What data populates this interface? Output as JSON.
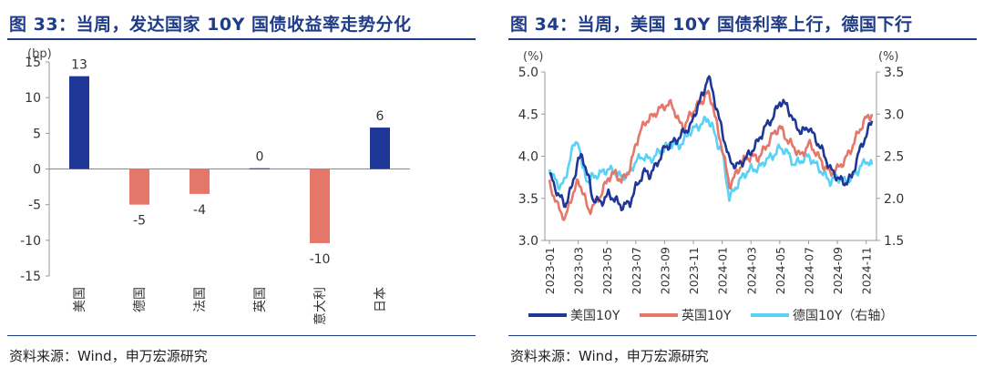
{
  "left": {
    "title": "图 33：当周，发达国家 10Y 国债收益率走势分化",
    "source": "资料来源：Wind，申万宏源研究"
  },
  "right": {
    "title": "图 34：当周，美国 10Y 国债利率上行，德国下行",
    "source": "资料来源：Wind，申万宏源研究"
  },
  "chart_data": [
    {
      "type": "bar",
      "title": "当周，发达国家 10Y 国债收益率走势分化",
      "ylabel": "(bp)",
      "ylim": [
        -15,
        15
      ],
      "yticks": [
        15,
        10,
        5,
        0,
        -5,
        -10,
        -15
      ],
      "categories": [
        "美国",
        "德国",
        "法国",
        "英国",
        "意大利",
        "日本"
      ],
      "values": [
        13,
        -5,
        -3.5,
        0.1,
        -10.4,
        5.8
      ],
      "labels": [
        "13",
        "-5",
        "-4",
        "0",
        "-10",
        "6"
      ],
      "colors": {
        "positive": "#1F3796",
        "negative": "#E5776A"
      }
    },
    {
      "type": "line",
      "title": "当周，美国 10Y 国债利率上行，德国下行",
      "y_left": {
        "label": "(%)",
        "lim": [
          3.0,
          5.0
        ],
        "ticks": [
          "5.0",
          "4.5",
          "4.0",
          "3.5",
          "3.0"
        ]
      },
      "y_right": {
        "label": "(%)",
        "lim": [
          1.5,
          3.5
        ],
        "ticks": [
          "3.5",
          "3.0",
          "2.5",
          "2.0",
          "1.5"
        ]
      },
      "x_ticks": [
        "2023-01",
        "2023-03",
        "2023-05",
        "2023-07",
        "2023-09",
        "2023-11",
        "2024-01",
        "2024-03",
        "2024-05",
        "2024-07",
        "2024-09",
        "2024-11"
      ],
      "series": [
        {
          "name": "美国10Y",
          "axis": "left",
          "color": "#1F3796",
          "x": [
            0,
            0.6,
            1.1,
            1.5,
            2.0,
            2.3,
            2.7,
            3.0,
            3.6,
            4.1,
            4.6,
            5.0,
            5.6,
            6.0,
            6.6,
            7.0,
            7.6,
            8.0,
            8.5,
            9.0,
            9.4,
            9.8,
            10.3,
            10.7,
            11.0,
            11.3,
            11.7,
            12.0,
            12.5,
            13.0,
            13.5,
            14.0,
            14.5,
            15.0,
            15.5,
            16.0,
            16.5,
            17.0,
            17.5,
            18.0,
            18.5,
            19.0,
            19.5,
            20.0,
            20.5,
            21.0,
            21.5,
            22.0,
            22.4
          ],
          "values": [
            3.79,
            3.55,
            3.42,
            3.6,
            3.95,
            4.0,
            3.75,
            3.5,
            3.45,
            3.55,
            3.48,
            3.4,
            3.45,
            3.63,
            3.82,
            3.78,
            3.95,
            4.1,
            4.15,
            4.22,
            4.3,
            4.35,
            4.6,
            4.75,
            4.95,
            4.8,
            4.5,
            4.3,
            3.95,
            3.88,
            3.95,
            4.05,
            4.18,
            4.35,
            4.45,
            4.65,
            4.6,
            4.4,
            4.28,
            4.35,
            4.2,
            4.05,
            3.85,
            3.75,
            3.68,
            3.75,
            4.05,
            4.25,
            4.42
          ]
        },
        {
          "name": "英国10Y",
          "axis": "left",
          "color": "#E5776A",
          "x": [
            0,
            0.6,
            1.1,
            1.5,
            2.0,
            2.3,
            2.7,
            3.0,
            3.6,
            4.1,
            4.6,
            5.0,
            5.6,
            6.0,
            6.6,
            7.0,
            7.6,
            8.0,
            8.5,
            9.0,
            9.4,
            9.8,
            10.3,
            10.7,
            11.0,
            11.3,
            11.7,
            12.0,
            12.5,
            13.0,
            13.5,
            14.0,
            14.5,
            15.0,
            15.5,
            16.0,
            16.5,
            17.0,
            17.5,
            18.0,
            18.5,
            19.0,
            19.5,
            20.0,
            20.5,
            21.0,
            21.5,
            22.0,
            22.4
          ],
          "values": [
            3.67,
            3.4,
            3.25,
            3.5,
            3.7,
            3.6,
            3.35,
            3.4,
            3.55,
            3.75,
            3.8,
            3.7,
            3.85,
            4.15,
            4.4,
            4.45,
            4.55,
            4.6,
            4.62,
            4.4,
            4.35,
            4.5,
            4.6,
            4.68,
            4.75,
            4.65,
            4.3,
            4.1,
            3.65,
            3.8,
            3.95,
            4.0,
            3.98,
            4.1,
            4.25,
            4.35,
            4.2,
            4.1,
            4.0,
            4.15,
            4.05,
            3.9,
            3.8,
            3.85,
            3.95,
            4.1,
            4.3,
            4.45,
            4.5
          ]
        },
        {
          "name": "德国10Y（右轴）",
          "axis": "right",
          "color": "#5BD2F5",
          "x": [
            0,
            0.6,
            1.1,
            1.5,
            2.0,
            2.3,
            2.7,
            3.0,
            3.6,
            4.1,
            4.6,
            5.0,
            5.6,
            6.0,
            6.6,
            7.0,
            7.6,
            8.0,
            8.5,
            9.0,
            9.4,
            9.8,
            10.3,
            10.7,
            11.0,
            11.3,
            11.7,
            12.0,
            12.5,
            13.0,
            13.5,
            14.0,
            14.5,
            15.0,
            15.5,
            16.0,
            16.5,
            17.0,
            17.5,
            18.0,
            18.5,
            19.0,
            19.5,
            20.0,
            20.5,
            21.0,
            21.5,
            22.0,
            22.4
          ],
          "values": [
            2.35,
            2.15,
            2.2,
            2.55,
            2.7,
            2.35,
            2.2,
            2.25,
            2.3,
            2.35,
            2.3,
            2.25,
            2.3,
            2.45,
            2.5,
            2.45,
            2.55,
            2.6,
            2.65,
            2.62,
            2.7,
            2.8,
            2.85,
            2.9,
            2.95,
            2.85,
            2.65,
            2.55,
            2.0,
            2.15,
            2.28,
            2.35,
            2.35,
            2.45,
            2.5,
            2.6,
            2.55,
            2.4,
            2.45,
            2.5,
            2.4,
            2.3,
            2.2,
            2.25,
            2.2,
            2.25,
            2.35,
            2.45,
            2.4
          ]
        }
      ]
    }
  ]
}
